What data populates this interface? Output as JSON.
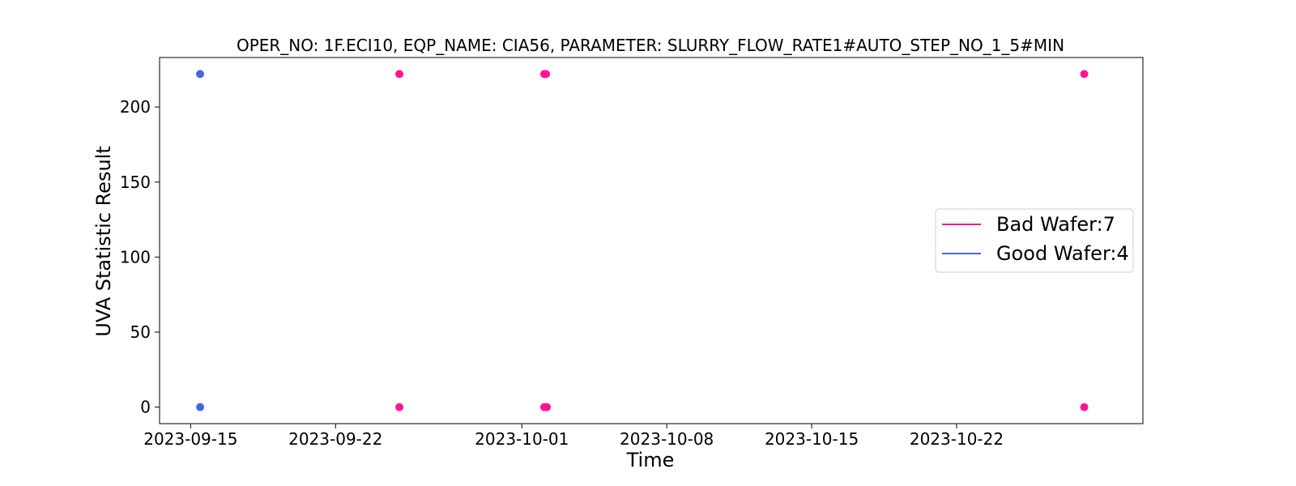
{
  "chart_data": {
    "type": "scatter",
    "title": "OPER_NO: 1F.ECI10,  EQP_NAME: CIA56,  PARAMETER: SLURRY_FLOW_RATE1#AUTO_STEP_NO_1_5#MIN",
    "xlabel": "Time",
    "ylabel": "UVA Statistic Result",
    "x_type": "date",
    "xlim": [
      "2023-09-13T12:00",
      "2023-10-31T00:00"
    ],
    "ylim": [
      -11,
      233
    ],
    "x_ticks": [
      "2023-09-15",
      "2023-09-22",
      "2023-10-01",
      "2023-10-08",
      "2023-10-15",
      "2023-10-22"
    ],
    "y_ticks": [
      0,
      50,
      100,
      150,
      200
    ],
    "grid": false,
    "legend_position": "center-right",
    "series": [
      {
        "name": "Bad Wafer:7",
        "color": "#ff1493",
        "points": [
          {
            "x": "2023-09-25T02:00",
            "y": 222
          },
          {
            "x": "2023-09-25T02:00",
            "y": 0
          },
          {
            "x": "2023-10-02T02:00",
            "y": 222
          },
          {
            "x": "2023-10-02T04:00",
            "y": 222
          },
          {
            "x": "2023-10-02T02:00",
            "y": 0
          },
          {
            "x": "2023-10-02T05:00",
            "y": 0
          },
          {
            "x": "2023-10-28T04:00",
            "y": 222
          },
          {
            "x": "2023-10-28T04:00",
            "y": 0
          }
        ]
      },
      {
        "name": "Good Wafer:4",
        "color": "#4169e1",
        "points": [
          {
            "x": "2023-09-15T11:00",
            "y": 222
          },
          {
            "x": "2023-09-15T11:00",
            "y": 0
          }
        ]
      }
    ]
  }
}
